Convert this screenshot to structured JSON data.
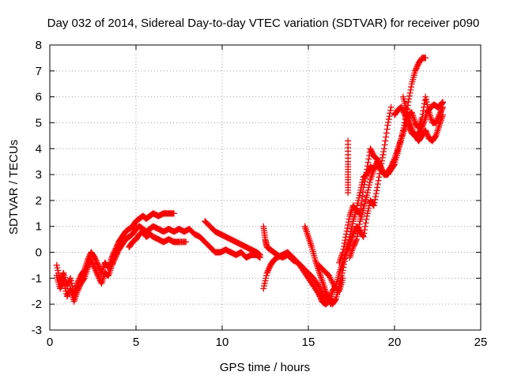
{
  "chart_data": {
    "type": "scatter",
    "title": "Day 032 of 2014, Sidereal Day-to-day VTEC variation (SDTVAR) for receiver p090",
    "xlabel": "GPS time / hours",
    "ylabel": "SDTVAR / TECUs",
    "xlim": [
      0,
      25
    ],
    "ylim": [
      -3,
      8
    ],
    "xticks": [
      "0",
      "5",
      "10",
      "15",
      "20",
      "25"
    ],
    "yticks": [
      "-3",
      "-2",
      "-1",
      "0",
      "1",
      "2",
      "3",
      "4",
      "5",
      "6",
      "7",
      "8"
    ],
    "grid": true,
    "marker": "+",
    "series": [
      {
        "name": "SDTVAR",
        "color": "#ff0000",
        "tracks": [
          [
            [
              0.4,
              -0.5
            ],
            [
              0.6,
              -1.1
            ],
            [
              0.8,
              -0.8
            ],
            [
              1.0,
              -1.3
            ],
            [
              1.2,
              -1.0
            ],
            [
              1.4,
              -1.6
            ],
            [
              1.6,
              -1.2
            ],
            [
              1.8,
              -0.9
            ],
            [
              2.0,
              -0.7
            ],
            [
              2.2,
              -0.3
            ],
            [
              2.4,
              0.0
            ],
            [
              2.6,
              -0.2
            ],
            [
              2.8,
              -0.5
            ],
            [
              3.0,
              -0.8
            ],
            [
              3.2,
              -0.4
            ],
            [
              3.4,
              -0.6
            ],
            [
              3.6,
              -0.2
            ],
            [
              3.8,
              0.1
            ],
            [
              4.0,
              0.4
            ],
            [
              4.2,
              0.6
            ],
            [
              4.4,
              0.8
            ],
            [
              4.6,
              0.9
            ],
            [
              4.8,
              1.0
            ],
            [
              5.0,
              1.2
            ],
            [
              5.2,
              1.3
            ],
            [
              5.4,
              1.4
            ],
            [
              5.6,
              1.3
            ],
            [
              5.8,
              1.4
            ],
            [
              6.0,
              1.5
            ],
            [
              6.3,
              1.4
            ],
            [
              6.6,
              1.5
            ],
            [
              6.9,
              1.5
            ],
            [
              7.2,
              1.5
            ]
          ],
          [
            [
              0.4,
              -0.9
            ],
            [
              0.6,
              -1.4
            ],
            [
              0.8,
              -1.1
            ],
            [
              1.0,
              -1.7
            ],
            [
              1.2,
              -1.4
            ],
            [
              1.4,
              -1.9
            ],
            [
              1.6,
              -1.5
            ],
            [
              1.8,
              -1.2
            ],
            [
              2.0,
              -1.0
            ],
            [
              2.2,
              -0.6
            ],
            [
              2.4,
              -0.3
            ],
            [
              2.6,
              -0.6
            ],
            [
              2.8,
              -0.9
            ],
            [
              3.0,
              -1.2
            ],
            [
              3.2,
              -0.8
            ],
            [
              3.4,
              -0.9
            ],
            [
              3.6,
              -0.5
            ],
            [
              3.8,
              -0.2
            ],
            [
              4.0,
              0.1
            ],
            [
              4.2,
              0.3
            ],
            [
              4.4,
              0.5
            ],
            [
              4.6,
              0.6
            ],
            [
              4.8,
              0.7
            ],
            [
              5.0,
              0.9
            ],
            [
              5.2,
              1.0
            ],
            [
              5.4,
              0.9
            ],
            [
              5.6,
              0.8
            ],
            [
              5.8,
              0.9
            ],
            [
              6.0,
              1.0
            ],
            [
              6.3,
              0.9
            ],
            [
              6.6,
              0.8
            ],
            [
              6.9,
              0.9
            ],
            [
              7.2,
              0.8
            ],
            [
              7.5,
              0.9
            ],
            [
              7.8,
              0.8
            ],
            [
              8.1,
              0.9
            ],
            [
              8.4,
              0.7
            ],
            [
              8.7,
              0.6
            ],
            [
              9.0,
              0.4
            ],
            [
              9.3,
              0.2
            ],
            [
              9.6,
              0.0
            ],
            [
              9.9,
              0.0
            ],
            [
              10.2,
              0.1
            ],
            [
              10.5,
              0.0
            ],
            [
              10.8,
              -0.1
            ],
            [
              11.1,
              0.0
            ],
            [
              11.4,
              -0.2
            ],
            [
              11.7,
              -0.1
            ],
            [
              12.0,
              -0.1
            ],
            [
              12.2,
              -0.2
            ]
          ],
          [
            [
              4.6,
              0.2
            ],
            [
              4.8,
              0.4
            ],
            [
              5.0,
              0.5
            ],
            [
              5.2,
              0.7
            ],
            [
              5.4,
              0.8
            ],
            [
              5.6,
              0.6
            ],
            [
              5.8,
              0.7
            ],
            [
              6.0,
              0.6
            ],
            [
              6.3,
              0.5
            ],
            [
              6.6,
              0.4
            ],
            [
              6.9,
              0.5
            ],
            [
              7.2,
              0.4
            ],
            [
              7.5,
              0.4
            ],
            [
              7.9,
              0.4
            ]
          ],
          [
            [
              9.0,
              1.2
            ],
            [
              9.3,
              1.0
            ],
            [
              9.6,
              0.8
            ],
            [
              9.9,
              0.7
            ],
            [
              10.2,
              0.6
            ],
            [
              10.5,
              0.5
            ],
            [
              10.8,
              0.4
            ],
            [
              11.1,
              0.3
            ],
            [
              11.4,
              0.2
            ],
            [
              11.7,
              0.1
            ],
            [
              12.0,
              0.0
            ],
            [
              12.2,
              -0.1
            ]
          ],
          [
            [
              12.4,
              1.0
            ],
            [
              12.5,
              0.5
            ],
            [
              12.6,
              0.2
            ],
            [
              12.8,
              0.1
            ],
            [
              13.0,
              0.0
            ],
            [
              13.2,
              -0.1
            ],
            [
              13.5,
              -0.2
            ],
            [
              13.8,
              -0.1
            ],
            [
              14.1,
              -0.3
            ],
            [
              14.4,
              -0.4
            ],
            [
              14.7,
              -0.6
            ],
            [
              15.0,
              -0.8
            ],
            [
              15.3,
              -1.0
            ],
            [
              15.6,
              -1.3
            ],
            [
              15.8,
              -1.6
            ],
            [
              16.0,
              -1.8
            ],
            [
              16.2,
              -1.7
            ],
            [
              16.4,
              -2.0
            ],
            [
              16.6,
              -1.8
            ],
            [
              16.8,
              -1.3
            ],
            [
              17.0,
              -0.7
            ],
            [
              17.2,
              0.0
            ],
            [
              17.4,
              0.6
            ],
            [
              17.6,
              1.2
            ],
            [
              17.8,
              1.7
            ],
            [
              18.0,
              2.3
            ],
            [
              18.2,
              2.9
            ],
            [
              18.4,
              3.0
            ],
            [
              18.6,
              3.3
            ],
            [
              18.8,
              3.2
            ],
            [
              19.0,
              3.5
            ],
            [
              19.2,
              3.3
            ],
            [
              19.4,
              3.0
            ],
            [
              19.6,
              3.1
            ],
            [
              19.8,
              3.3
            ],
            [
              20.0,
              3.6
            ],
            [
              20.2,
              4.0
            ],
            [
              20.4,
              4.4
            ],
            [
              20.6,
              5.0
            ],
            [
              20.8,
              5.8
            ],
            [
              21.0,
              6.5
            ],
            [
              21.2,
              7.0
            ],
            [
              21.4,
              7.3
            ],
            [
              21.6,
              7.5
            ],
            [
              21.8,
              7.5
            ]
          ],
          [
            [
              12.4,
              -1.4
            ],
            [
              12.6,
              -0.8
            ],
            [
              12.8,
              -0.5
            ],
            [
              13.0,
              -0.3
            ],
            [
              13.2,
              -0.2
            ],
            [
              13.5,
              -0.1
            ],
            [
              13.8,
              0.0
            ],
            [
              14.1,
              -0.2
            ],
            [
              14.4,
              -0.4
            ],
            [
              14.7,
              -0.7
            ],
            [
              15.0,
              -1.0
            ],
            [
              15.3,
              -1.3
            ],
            [
              15.6,
              -1.6
            ],
            [
              15.8,
              -1.9
            ],
            [
              16.0,
              -2.0
            ],
            [
              16.2,
              -1.9
            ],
            [
              16.4,
              -1.5
            ],
            [
              16.6,
              -1.3
            ],
            [
              16.8,
              -0.8
            ],
            [
              17.0,
              -0.4
            ],
            [
              17.2,
              0.0
            ],
            [
              17.4,
              0.3
            ],
            [
              17.6,
              0.7
            ],
            [
              17.8,
              1.0
            ],
            [
              18.0,
              0.8
            ],
            [
              18.2,
              0.6
            ],
            [
              18.4,
              1.4
            ],
            [
              18.6,
              2.0
            ],
            [
              18.8,
              1.8
            ],
            [
              19.0,
              2.5
            ],
            [
              19.2,
              3.3
            ],
            [
              19.4,
              4.0
            ],
            [
              19.6,
              4.9
            ],
            [
              19.8,
              5.6
            ]
          ],
          [
            [
              14.8,
              1.0
            ],
            [
              15.0,
              0.6
            ],
            [
              15.2,
              0.2
            ],
            [
              15.4,
              -0.3
            ],
            [
              15.6,
              -0.7
            ],
            [
              15.8,
              -1.1
            ],
            [
              16.0,
              -1.5
            ],
            [
              16.2,
              -1.8
            ],
            [
              16.3,
              -2.0
            ]
          ],
          [
            [
              15.6,
              -0.5
            ],
            [
              15.9,
              -0.7
            ],
            [
              16.2,
              -0.9
            ],
            [
              16.5,
              -1.3
            ],
            [
              16.8,
              -1.5
            ],
            [
              17.0,
              -1.0
            ]
          ],
          [
            [
              16.8,
              -0.4
            ],
            [
              17.0,
              0.0
            ],
            [
              17.2,
              0.7
            ],
            [
              17.4,
              1.4
            ],
            [
              17.6,
              1.8
            ],
            [
              17.8,
              1.6
            ],
            [
              18.0,
              1.5
            ],
            [
              18.2,
              2.5
            ],
            [
              18.4,
              3.2
            ],
            [
              18.6,
              4.0
            ],
            [
              18.8,
              3.7
            ],
            [
              19.0,
              3.6
            ],
            [
              19.2,
              3.3
            ]
          ],
          [
            [
              17.4,
              -0.2
            ],
            [
              17.6,
              0.2
            ],
            [
              17.8,
              0.5
            ],
            [
              18.0,
              1.2
            ],
            [
              18.2,
              1.7
            ],
            [
              18.4,
              2.2
            ],
            [
              18.6,
              2.8
            ],
            [
              18.8,
              3.2
            ],
            [
              19.0,
              3.4
            ],
            [
              19.2,
              3.2
            ],
            [
              19.4,
              3.0
            ],
            [
              19.6,
              3.0
            ],
            [
              19.8,
              3.2
            ],
            [
              20.0,
              3.4
            ],
            [
              20.2,
              3.9
            ],
            [
              20.4,
              4.4
            ],
            [
              20.6,
              4.8
            ],
            [
              20.8,
              5.3
            ],
            [
              21.0,
              5.4
            ],
            [
              21.2,
              5.0
            ],
            [
              21.4,
              4.8
            ],
            [
              21.6,
              5.2
            ],
            [
              21.8,
              6.0
            ],
            [
              22.0,
              5.4
            ],
            [
              22.2,
              5.0
            ],
            [
              22.4,
              5.0
            ],
            [
              22.6,
              5.3
            ],
            [
              22.8,
              5.6
            ]
          ],
          [
            [
              20.0,
              5.3
            ],
            [
              20.2,
              5.5
            ],
            [
              20.4,
              5.6
            ],
            [
              20.6,
              5.3
            ],
            [
              20.8,
              4.9
            ],
            [
              21.0,
              4.6
            ],
            [
              21.2,
              4.5
            ],
            [
              21.4,
              4.3
            ],
            [
              21.6,
              4.5
            ],
            [
              21.8,
              4.7
            ],
            [
              22.0,
              4.4
            ],
            [
              22.2,
              4.3
            ],
            [
              22.4,
              4.5
            ],
            [
              22.6,
              4.9
            ],
            [
              22.8,
              5.3
            ]
          ],
          [
            [
              20.5,
              6.0
            ],
            [
              20.7,
              5.5
            ],
            [
              20.9,
              5.0
            ],
            [
              21.1,
              4.6
            ],
            [
              21.3,
              4.5
            ],
            [
              21.5,
              4.7
            ],
            [
              21.7,
              5.0
            ],
            [
              21.9,
              5.4
            ],
            [
              22.1,
              5.6
            ],
            [
              22.3,
              5.7
            ],
            [
              22.5,
              5.6
            ],
            [
              22.7,
              5.7
            ],
            [
              22.8,
              5.8
            ]
          ],
          [
            [
              17.3,
              4.3
            ],
            [
              17.3,
              3.5
            ],
            [
              17.3,
              2.9
            ],
            [
              17.3,
              2.3
            ]
          ]
        ]
      }
    ]
  }
}
